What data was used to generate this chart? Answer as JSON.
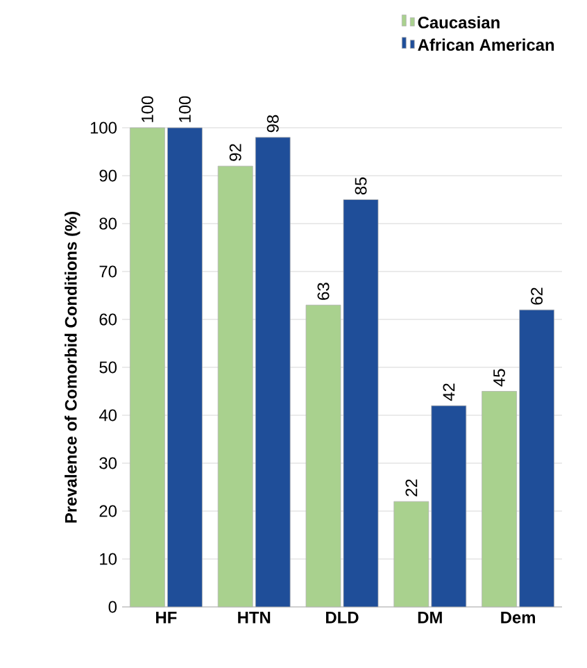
{
  "chart_data": {
    "type": "bar",
    "ylabel": "Prevalence of Comorbid Conditions (%)",
    "categories": [
      "HF",
      "HTN",
      "DLD",
      "DM",
      "Dem"
    ],
    "series": [
      {
        "name": "Caucasian",
        "color": "#a9d18e",
        "values": [
          100,
          92,
          63,
          22,
          45
        ]
      },
      {
        "name": "African American",
        "color": "#1f4e99",
        "values": [
          100,
          98,
          85,
          42,
          62
        ]
      }
    ],
    "ylim": [
      0,
      100
    ],
    "yticks": [
      0,
      10,
      20,
      30,
      40,
      50,
      60,
      70,
      80,
      90,
      100
    ],
    "grid": "y",
    "legend": "top right",
    "data_labels": true
  }
}
